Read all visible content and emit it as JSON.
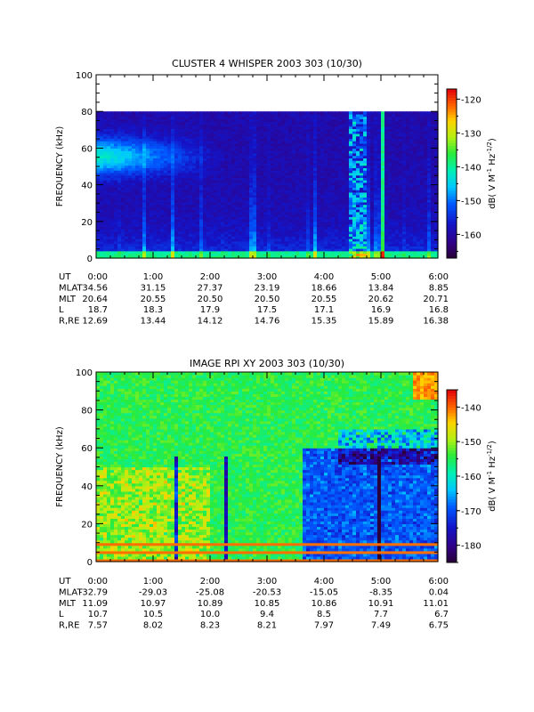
{
  "chart_data": [
    {
      "type": "heatmap",
      "title": "CLUSTER 4 WHISPER 2003 303 (10/30)",
      "ylabel": "FREQUENCY (kHz)",
      "ylim": [
        0,
        100
      ],
      "yticks": [
        "0",
        "20",
        "40",
        "60",
        "80",
        "100"
      ],
      "xticks": [
        "0:00",
        "1:00",
        "2:00",
        "3:00",
        "4:00",
        "5:00",
        "6:00"
      ],
      "xlim_hours": [
        0,
        6
      ],
      "data_top_khz": 80,
      "colorbar": {
        "ticks": [
          "-120",
          "-130",
          "-140",
          "-150",
          "-160"
        ],
        "values": [
          -120,
          -130,
          -140,
          -150,
          -160
        ],
        "range": [
          -167,
          -117
        ],
        "label_main": "dB( V M",
        "label_sup1": "-1",
        "label_mid": " Hz",
        "label_sup2": "-1/2",
        "label_end": ")"
      },
      "ephemeris": [
        {
          "label": "UT",
          "values": [
            "0:00",
            "1:00",
            "2:00",
            "3:00",
            "4:00",
            "5:00",
            "6:00"
          ]
        },
        {
          "label": "MLAT",
          "values": [
            "34.56",
            "31.15",
            "27.37",
            "23.19",
            "18.66",
            "13.84",
            "8.85"
          ]
        },
        {
          "label": "MLT",
          "values": [
            "20.64",
            "20.55",
            "20.50",
            "20.50",
            "20.55",
            "20.62",
            "20.71"
          ]
        },
        {
          "label": "L",
          "values": [
            "18.7",
            "18.3",
            "17.9",
            "17.5",
            "17.1",
            "16.9",
            "16.8"
          ]
        },
        {
          "label": "R,RE",
          "values": [
            "12.69",
            "13.44",
            "14.12",
            "14.76",
            "15.35",
            "15.89",
            "16.38"
          ]
        }
      ]
    },
    {
      "type": "heatmap",
      "title": "IMAGE RPI XY 2003 303 (10/30)",
      "ylabel": "FREQUENCY (kHz)",
      "ylim": [
        0,
        100
      ],
      "yticks": [
        "0",
        "20",
        "40",
        "60",
        "80",
        "100"
      ],
      "xticks": [
        "0:00",
        "1:00",
        "2:00",
        "3:00",
        "4:00",
        "5:00",
        "6:00"
      ],
      "xlim_hours": [
        0,
        6
      ],
      "colorbar": {
        "ticks": [
          "-140",
          "-150",
          "-160",
          "-170",
          "-180"
        ],
        "values": [
          -140,
          -150,
          -160,
          -170,
          -180
        ],
        "range": [
          -185,
          -135
        ],
        "label_main": "dB( V M",
        "label_sup1": "-1",
        "label_mid": " Hz",
        "label_sup2": "-1/2",
        "label_end": ")"
      },
      "ephemeris": [
        {
          "label": "UT",
          "values": [
            "0:00",
            "1:00",
            "2:00",
            "3:00",
            "4:00",
            "5:00",
            "6:00"
          ]
        },
        {
          "label": "MLAT",
          "values": [
            "-32.79",
            "-29.03",
            "-25.08",
            "-20.53",
            "-15.05",
            "-8.35",
            "0.04"
          ]
        },
        {
          "label": "MLT",
          "values": [
            "11.09",
            "10.97",
            "10.89",
            "10.85",
            "10.86",
            "10.91",
            "11.01"
          ]
        },
        {
          "label": "L",
          "values": [
            "10.7",
            "10.5",
            "10.0",
            "9.4",
            "8.5",
            "7.7",
            "6.7"
          ]
        },
        {
          "label": "R,RE",
          "values": [
            "7.57",
            "8.02",
            "8.23",
            "8.21",
            "7.97",
            "7.49",
            "6.75"
          ]
        }
      ]
    }
  ]
}
